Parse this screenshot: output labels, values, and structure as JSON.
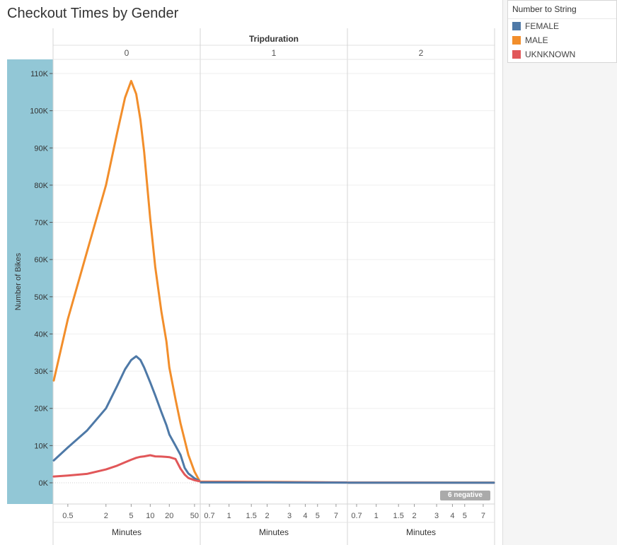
{
  "title": "Checkout Times by Gender",
  "legend": {
    "title": "Number to String",
    "items": [
      {
        "label": "FEMALE",
        "color": "#4e79a7"
      },
      {
        "label": "MALE",
        "color": "#f28e2b"
      },
      {
        "label": "UKNKNOWN",
        "color": "#e15759"
      }
    ]
  },
  "negative_badge": "6 negative",
  "chart_data": {
    "type": "line",
    "title": "Checkout Times by Gender",
    "column_header": "Tripduration",
    "ylabel": "Number of Bikes",
    "xlabel": "Minutes",
    "ylim": [
      0,
      110000
    ],
    "y_ticks": [
      {
        "v": 0,
        "label": "0K"
      },
      {
        "v": 10000,
        "label": "10K"
      },
      {
        "v": 20000,
        "label": "20K"
      },
      {
        "v": 30000,
        "label": "30K"
      },
      {
        "v": 40000,
        "label": "40K"
      },
      {
        "v": 50000,
        "label": "50K"
      },
      {
        "v": 60000,
        "label": "60K"
      },
      {
        "v": 70000,
        "label": "70K"
      },
      {
        "v": 80000,
        "label": "80K"
      },
      {
        "v": 90000,
        "label": "90K"
      },
      {
        "v": 100000,
        "label": "100K"
      },
      {
        "v": 110000,
        "label": "110K"
      }
    ],
    "panels": [
      {
        "label": "0",
        "xscale": "log",
        "xlim": [
          0.3,
          60
        ],
        "x_ticks": [
          {
            "v": 0.5,
            "label": "0.5"
          },
          {
            "v": 2,
            "label": "2"
          },
          {
            "v": 5,
            "label": "5"
          },
          {
            "v": 10,
            "label": "10"
          },
          {
            "v": 20,
            "label": "20"
          },
          {
            "v": 50,
            "label": "50"
          }
        ],
        "series": [
          {
            "name": "MALE",
            "color": "#f28e2b",
            "x": [
              0.3,
              0.5,
              1,
              2,
              3,
              4,
              5,
              6,
              7,
              8,
              10,
              12,
              15,
              18,
              20,
              25,
              30,
              35,
              40,
              50,
              60
            ],
            "y": [
              27500,
              44000,
              62000,
              80000,
              94000,
              103500,
              108000,
              104500,
              97500,
              89000,
              71000,
              58000,
              46000,
              38000,
              31000,
              22500,
              16000,
              11500,
              7500,
              3000,
              500
            ]
          },
          {
            "name": "FEMALE",
            "color": "#4e79a7",
            "x": [
              0.3,
              0.5,
              1,
              2,
              3,
              4,
              5,
              6,
              7,
              8,
              10,
              12,
              15,
              18,
              20,
              25,
              30,
              35,
              40,
              50,
              60
            ],
            "y": [
              6000,
              9500,
              14000,
              20000,
              26000,
              30500,
              33000,
              34000,
              33000,
              31000,
              27000,
              23500,
              19000,
              15500,
              13000,
              10000,
              7500,
              4000,
              2500,
              1200,
              500
            ]
          },
          {
            "name": "UKNKNOWN",
            "color": "#e15759",
            "x": [
              0.3,
              0.5,
              1,
              2,
              3,
              4,
              5,
              6,
              7,
              8,
              10,
              12,
              15,
              18,
              20,
              25,
              30,
              35,
              40,
              50,
              60
            ],
            "y": [
              1700,
              1950,
              2400,
              3600,
              4600,
              5500,
              6200,
              6700,
              7000,
              7100,
              7400,
              7100,
              7050,
              6950,
              6900,
              6400,
              3800,
              2200,
              1300,
              700,
              400
            ]
          }
        ]
      },
      {
        "label": "1",
        "xscale": "log",
        "xlim": [
          0.6,
          8.5
        ],
        "x_ticks": [
          {
            "v": 0.7,
            "label": "0.7"
          },
          {
            "v": 1,
            "label": "1"
          },
          {
            "v": 1.5,
            "label": "1.5"
          },
          {
            "v": 2,
            "label": "2"
          },
          {
            "v": 3,
            "label": "3"
          },
          {
            "v": 4,
            "label": "4"
          },
          {
            "v": 5,
            "label": "5"
          },
          {
            "v": 7,
            "label": "7"
          }
        ],
        "series": [
          {
            "name": "MALE",
            "color": "#f28e2b",
            "x": [
              0.6,
              1,
              2,
              3,
              5,
              8.5
            ],
            "y": [
              300,
              280,
              250,
              200,
              150,
              100
            ]
          },
          {
            "name": "UKNKNOWN",
            "color": "#e15759",
            "x": [
              0.6,
              1,
              2,
              3,
              5,
              8.5
            ],
            "y": [
              200,
              200,
              180,
              150,
              120,
              80
            ]
          },
          {
            "name": "FEMALE",
            "color": "#4e79a7",
            "x": [
              0.6,
              1,
              2,
              3,
              5,
              8.5
            ],
            "y": [
              100,
              100,
              90,
              80,
              60,
              40
            ]
          }
        ]
      },
      {
        "label": "2",
        "xscale": "log",
        "xlim": [
          0.6,
          8.5
        ],
        "x_ticks": [
          {
            "v": 0.7,
            "label": "0.7"
          },
          {
            "v": 1,
            "label": "1"
          },
          {
            "v": 1.5,
            "label": "1.5"
          },
          {
            "v": 2,
            "label": "2"
          },
          {
            "v": 3,
            "label": "3"
          },
          {
            "v": 4,
            "label": "4"
          },
          {
            "v": 5,
            "label": "5"
          },
          {
            "v": 7,
            "label": "7"
          }
        ],
        "series": [
          {
            "name": "MALE",
            "color": "#f28e2b",
            "x": [
              0.6,
              2,
              8.5
            ],
            "y": [
              50,
              50,
              30
            ]
          },
          {
            "name": "UKNKNOWN",
            "color": "#e15759",
            "x": [
              0.6,
              2,
              8.5
            ],
            "y": [
              30,
              30,
              20
            ]
          },
          {
            "name": "FEMALE",
            "color": "#4e79a7",
            "x": [
              0.6,
              2,
              8.5
            ],
            "y": [
              20,
              20,
              10
            ]
          }
        ]
      }
    ]
  }
}
